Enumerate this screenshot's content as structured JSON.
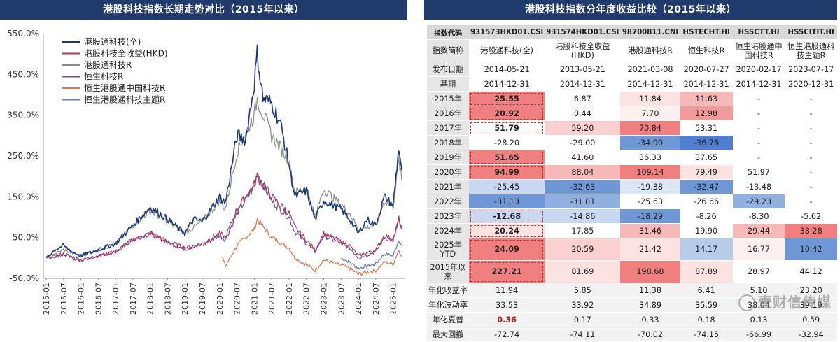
{
  "left_title": "港股科技指数长期走势对比（2015年以来）",
  "right_title": "港股科技指数分年度收益比较（2015年以来）",
  "chart_data": {
    "type": "line",
    "title": "港股科技指数长期走势对比（2015年以来）",
    "ylim": [
      -50,
      550
    ],
    "yticks": [
      "-50.0%",
      "50.0%",
      "150.0%",
      "250.0%",
      "350.0%",
      "450.0%",
      "550.0%"
    ],
    "ytick_values": [
      -50,
      50,
      150,
      250,
      350,
      450,
      550
    ],
    "xticks": [
      "2015-01",
      "2015-07",
      "2016-01",
      "2016-07",
      "2017-01",
      "2017-07",
      "2018-01",
      "2018-07",
      "2019-01",
      "2019-07",
      "2020-01",
      "2020-07",
      "2021-01",
      "2021-07",
      "2022-01",
      "2022-07",
      "2023-01",
      "2023-07",
      "2024-01",
      "2024-07",
      "2025-01"
    ],
    "legend_position": "top-left",
    "series": [
      {
        "name": "港股通科技(全)",
        "color": "#1f3a7a",
        "x": [
          "2015-01",
          "2015-04",
          "2015-07",
          "2015-10",
          "2016-01",
          "2016-07",
          "2017-01",
          "2017-07",
          "2018-01",
          "2018-07",
          "2019-01",
          "2019-04",
          "2019-07",
          "2020-01",
          "2020-03",
          "2020-07",
          "2020-10",
          "2021-01",
          "2021-02",
          "2021-04",
          "2021-07",
          "2021-10",
          "2022-01",
          "2022-03",
          "2022-07",
          "2022-10",
          "2023-01",
          "2023-07",
          "2023-10",
          "2024-01",
          "2024-04",
          "2024-07",
          "2024-10",
          "2025-01",
          "2025-03",
          "2025-04"
        ],
        "y": [
          0,
          20,
          30,
          15,
          5,
          20,
          35,
          80,
          125,
          95,
          60,
          95,
          90,
          150,
          135,
          300,
          290,
          430,
          500,
          390,
          380,
          330,
          230,
          150,
          165,
          95,
          140,
          120,
          95,
          60,
          95,
          80,
          150,
          130,
          270,
          215
        ]
      },
      {
        "name": "港股科技全收益(HKD)",
        "color": "#b03a5b",
        "x": [
          "2015-01",
          "2015-07",
          "2016-01",
          "2016-07",
          "2017-01",
          "2017-07",
          "2018-01",
          "2018-07",
          "2019-01",
          "2019-07",
          "2020-01",
          "2020-03",
          "2020-07",
          "2021-01",
          "2021-02",
          "2021-07",
          "2022-01",
          "2022-03",
          "2022-10",
          "2023-01",
          "2023-10",
          "2024-01",
          "2024-07",
          "2024-10",
          "2025-01",
          "2025-03",
          "2025-04"
        ],
        "y": [
          0,
          10,
          -5,
          5,
          15,
          45,
          60,
          40,
          25,
          35,
          60,
          50,
          120,
          180,
          200,
          150,
          110,
          75,
          20,
          60,
          30,
          5,
          20,
          55,
          45,
          95,
          75
        ]
      },
      {
        "name": "港股通科技R",
        "color": "#8c8c8c",
        "x": [
          "2015-01",
          "2015-07",
          "2016-01",
          "2016-07",
          "2017-01",
          "2017-07",
          "2018-01",
          "2018-07",
          "2019-01",
          "2019-07",
          "2020-01",
          "2020-03",
          "2020-07",
          "2021-01",
          "2021-02",
          "2021-07",
          "2022-01",
          "2022-03",
          "2022-07",
          "2022-10",
          "2023-01",
          "2023-10",
          "2024-01",
          "2024-07",
          "2024-10",
          "2025-01",
          "2025-03",
          "2025-04"
        ],
        "y": [
          0,
          20,
          5,
          20,
          35,
          80,
          115,
          90,
          60,
          90,
          140,
          120,
          260,
          350,
          390,
          300,
          240,
          160,
          175,
          100,
          170,
          110,
          70,
          80,
          140,
          125,
          240,
          190
        ]
      },
      {
        "name": "恒生科技R",
        "color": "#6a4fa0",
        "x": [
          "2015-01",
          "2015-07",
          "2016-01",
          "2016-07",
          "2017-01",
          "2017-07",
          "2018-01",
          "2018-07",
          "2019-01",
          "2019-07",
          "2020-01",
          "2020-03",
          "2020-07",
          "2021-01",
          "2021-02",
          "2021-07",
          "2022-01",
          "2022-03",
          "2022-10",
          "2023-01",
          "2023-10",
          "2024-01",
          "2024-07",
          "2024-10",
          "2025-01",
          "2025-03",
          "2025-04"
        ],
        "y": [
          0,
          8,
          -8,
          5,
          15,
          45,
          60,
          38,
          22,
          32,
          55,
          45,
          110,
          175,
          210,
          140,
          100,
          65,
          15,
          55,
          25,
          0,
          15,
          50,
          42,
          90,
          70
        ]
      },
      {
        "name": "恒生港股通中国科技R",
        "color": "#d9774f",
        "x": [
          "2020-02",
          "2020-03",
          "2020-07",
          "2021-01",
          "2021-02",
          "2021-07",
          "2022-01",
          "2022-03",
          "2022-10",
          "2023-01",
          "2023-10",
          "2024-01",
          "2024-07",
          "2024-10",
          "2025-01",
          "2025-03",
          "2025-04"
        ],
        "y": [
          0,
          -20,
          30,
          70,
          95,
          50,
          25,
          0,
          -30,
          -5,
          -25,
          -40,
          -30,
          -10,
          -15,
          20,
          5
        ]
      },
      {
        "name": "恒生港股通科技主题R",
        "color": "#6b7fb5",
        "x": [
          "2023-07",
          "2023-10",
          "2024-01",
          "2024-07",
          "2024-10",
          "2025-01",
          "2025-03",
          "2025-04"
        ],
        "y": [
          0,
          -10,
          -25,
          -15,
          10,
          5,
          45,
          30
        ]
      }
    ]
  },
  "table": {
    "row_headers": [
      "指数代码",
      "指数简称",
      "发布日期",
      "基期",
      "2015年",
      "2016年",
      "2017年",
      "2018年",
      "2019年",
      "2020年",
      "2021年",
      "2022年",
      "2023年",
      "2024年",
      "2025年\nYTD",
      "2015年以\n来",
      "年化收益率",
      "年化波动率",
      "年化夏普",
      "最大回撤"
    ],
    "codes": [
      "931573HKD01.CSI",
      "931574HKD01.CSI",
      "98700811.CNI",
      "HSTECHT.HI",
      "HSSCTT.HI",
      "HSSCITIT.HI"
    ],
    "names": [
      "港股通科技(全)",
      "港股科技全收益(HKD)",
      "港股通科技R",
      "恒生科技R",
      "恒生港股通中国科技R",
      "恒生港股通科技主题R"
    ],
    "release": [
      "2014-05-21",
      "2013-05-21",
      "2021-03-08",
      "2020-07-27",
      "2020-02-17",
      "2023-07-17"
    ],
    "base": [
      "2014-12-31",
      "2014-12-31",
      "2014-12-31",
      "2014-12-31",
      "2014-12-31",
      "2020-12-31"
    ],
    "rows": [
      [
        "25.55",
        "6.87",
        "11.84",
        "11.63",
        "-",
        "-"
      ],
      [
        "20.92",
        "0.44",
        "7.70",
        "12.98",
        "-",
        "-"
      ],
      [
        "51.79",
        "59.20",
        "70.84",
        "53.31",
        "-",
        "-"
      ],
      [
        "-28.20",
        "-29.00",
        "-34.90",
        "-36.76",
        "-",
        "-"
      ],
      [
        "51.65",
        "41.60",
        "36.33",
        "37.65",
        "-",
        "-"
      ],
      [
        "94.99",
        "88.04",
        "109.14",
        "79.49",
        "51.97",
        "-"
      ],
      [
        "-25.45",
        "-32.63",
        "-19.38",
        "-32.47",
        "-13.48",
        "-"
      ],
      [
        "-31.13",
        "-31.01",
        "-25.63",
        "-26.66",
        "-29.23",
        "-"
      ],
      [
        "-12.68",
        "-14.86",
        "-18.29",
        "-8.26",
        "-8.30",
        "-5.62"
      ],
      [
        "20.24",
        "17.85",
        "31.46",
        "19.90",
        "29.44",
        "38.28"
      ],
      [
        "24.09",
        "20.59",
        "21.42",
        "14.17",
        "16.77",
        "10.42"
      ],
      [
        "227.21",
        "81.69",
        "198.68",
        "87.89",
        "28.97",
        "44.12"
      ]
    ],
    "stats": [
      [
        "11.94",
        "5.85",
        "11.38",
        "6.41",
        "5.10",
        "23.20"
      ],
      [
        "33.53",
        "33.92",
        "34.89",
        "35.59",
        "38.04",
        "39.19"
      ],
      [
        "0.36",
        "0.17",
        "0.33",
        "0.18",
        "0.13",
        "0.59"
      ],
      [
        "-72.74",
        "-74.11",
        "-70.02",
        "-74.15",
        "-66.99",
        "-32.94"
      ]
    ],
    "cell_colors": [
      [
        "#f08080",
        "#ffffff",
        "#fde2e2",
        "#f7b8b8",
        "#ffffff",
        "#ffffff"
      ],
      [
        "#f08080",
        "#ffffff",
        "#fff0f0",
        "#f29a9a",
        "#ffffff",
        "#ffffff"
      ],
      [
        "#ffffff",
        "#fbd0d0",
        "#f08080",
        "#ffffff",
        "#ffffff",
        "#ffffff"
      ],
      [
        "#ffffff",
        "#ffffff",
        "#6f97d6",
        "#4f7fcf",
        "#ffffff",
        "#ffffff"
      ],
      [
        "#f08080",
        "#ffffff",
        "#ffffff",
        "#ffffff",
        "#ffffff",
        "#ffffff"
      ],
      [
        "#f08080",
        "#f7b8b8",
        "#f08080",
        "#fde2e2",
        "#ffffff",
        "#ffffff"
      ],
      [
        "#c9d7f0",
        "#6f97d6",
        "#dce6f5",
        "#6f97d6",
        "#ffffff",
        "#ffffff"
      ],
      [
        "#6f97d6",
        "#8fb0e0",
        "#ffffff",
        "#ffffff",
        "#8fb0e0",
        "#ffffff"
      ],
      [
        "#c9d7f0",
        "#c9d7f0",
        "#6f97d6",
        "#ffffff",
        "#ffffff",
        "#ffffff"
      ],
      [
        "#fde2e2",
        "#ffffff",
        "#f7b8b8",
        "#ffffff",
        "#f7b8b8",
        "#f08080"
      ],
      [
        "#f08080",
        "#fbd0d0",
        "#fde2e2",
        "#b7cbea",
        "#fff0f0",
        "#6f97d6"
      ],
      [
        "#f08080",
        "#fde2e2",
        "#f08080",
        "#fde2e2",
        "#ffffff",
        "#ffffff"
      ]
    ],
    "highlight_col": 0,
    "highlight_rows": [
      0,
      1,
      2,
      4,
      5,
      8,
      9,
      10,
      11
    ],
    "sharpe_highlight": "0.36"
  },
  "watermark": "壹财信传媒"
}
